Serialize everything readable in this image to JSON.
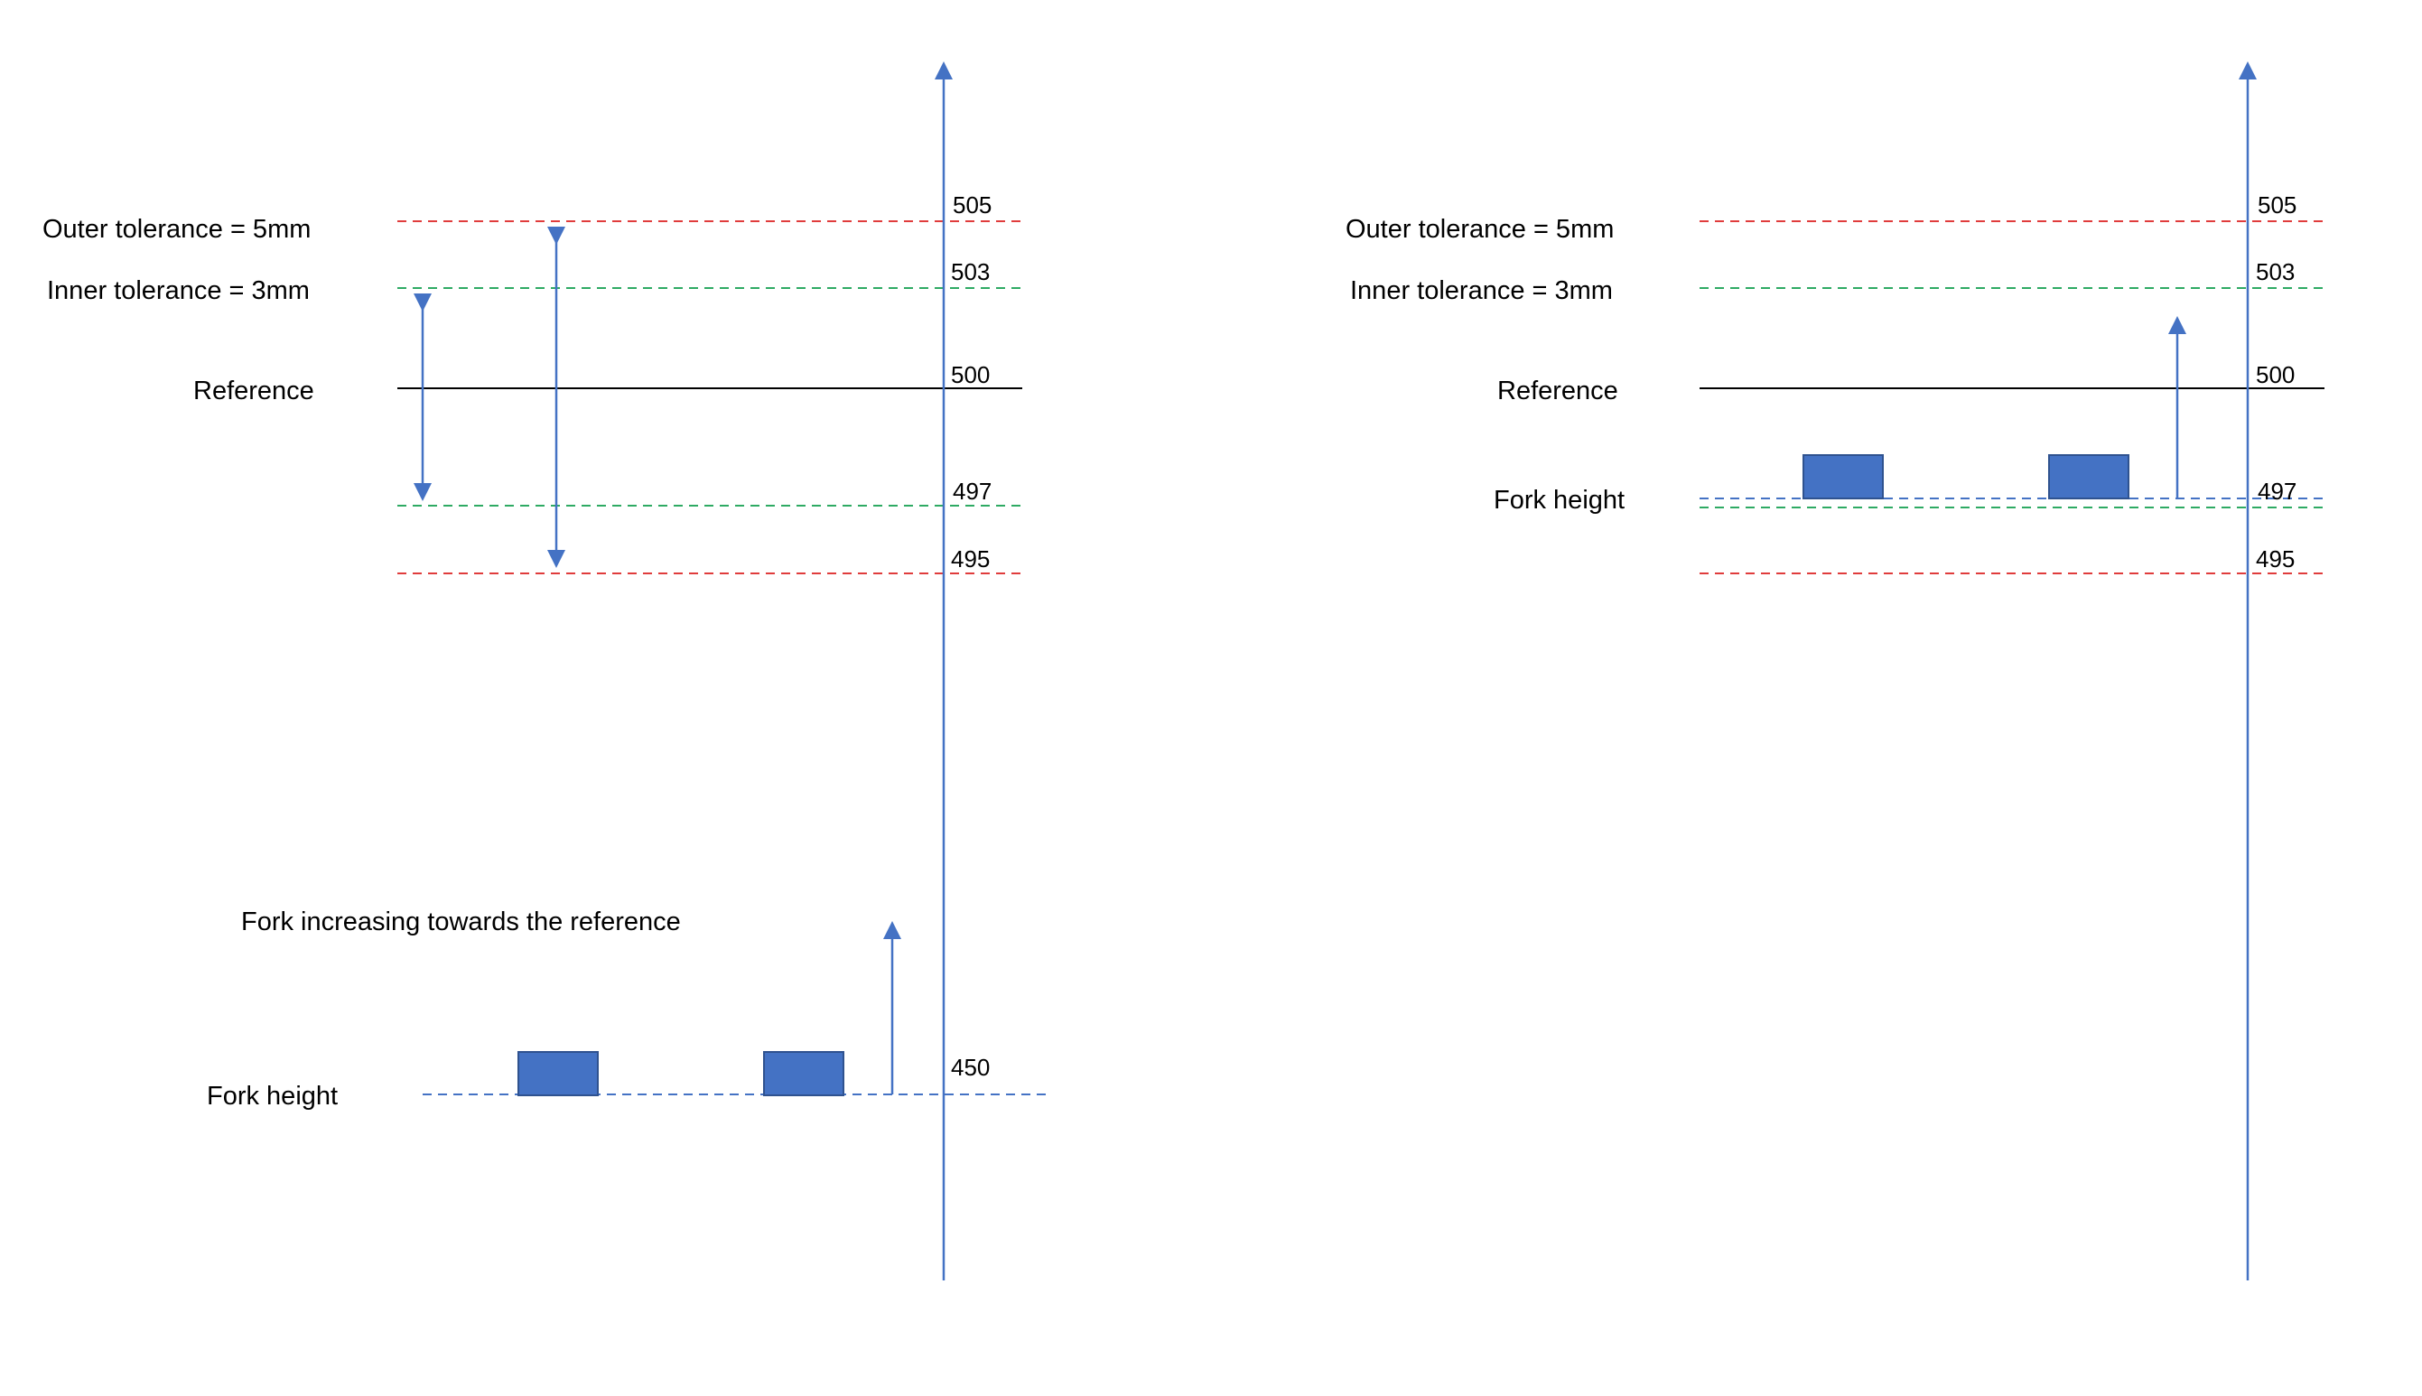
{
  "colors": {
    "axis": "#4472C4",
    "outer_tolerance": "#E03C3C",
    "inner_tolerance": "#2EAA63",
    "reference": "#000000",
    "fork_line": "#4472C4",
    "fork_block_fill": "#4472C4",
    "fork_block_stroke": "#2F528F",
    "arrow": "#4472C4"
  },
  "left_panel": {
    "outer_label": "Outer tolerance = 5mm",
    "inner_label": "Inner tolerance = 3mm",
    "reference_label": "Reference",
    "fork_label": "Fork height",
    "caption": "Fork increasing towards the reference",
    "values": {
      "v505": "505",
      "v503": "503",
      "v500": "500",
      "v497": "497",
      "v495": "495",
      "v450": "450"
    }
  },
  "right_panel": {
    "outer_label": "Outer tolerance = 5mm",
    "inner_label": "Inner tolerance = 3mm",
    "reference_label": "Reference",
    "fork_label": "Fork height",
    "values": {
      "v505": "505",
      "v503": "503",
      "v500": "500",
      "v497": "497",
      "v495": "495"
    }
  }
}
